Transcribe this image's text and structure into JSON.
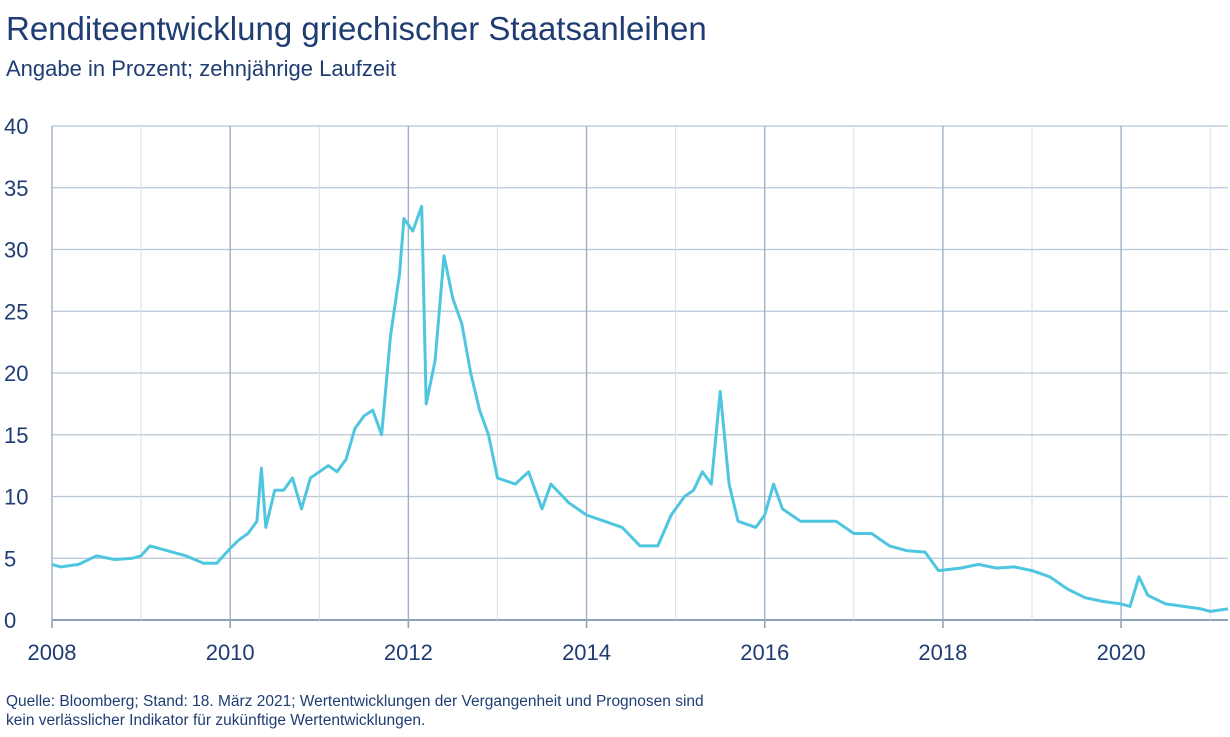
{
  "chart_data": {
    "type": "line",
    "title": "Renditeentwicklung griechischer Staatsanleihen",
    "subtitle": "Angabe in Prozent; zehnjährige Laufzeit",
    "xlabel": "",
    "ylabel": "",
    "xlim": [
      2008,
      2021.2
    ],
    "ylim": [
      0,
      40
    ],
    "x_ticks": [
      2008,
      2010,
      2012,
      2014,
      2016,
      2018,
      2020
    ],
    "y_ticks": [
      0,
      5,
      10,
      15,
      20,
      25,
      30,
      35,
      40
    ],
    "grid": true,
    "legend": "none",
    "series": [
      {
        "color": "#4fc6df",
        "points": [
          [
            2008.0,
            4.5
          ],
          [
            2008.1,
            4.3
          ],
          [
            2008.3,
            4.5
          ],
          [
            2008.5,
            5.2
          ],
          [
            2008.7,
            4.9
          ],
          [
            2008.9,
            5.0
          ],
          [
            2009.0,
            5.2
          ],
          [
            2009.1,
            6.0
          ],
          [
            2009.3,
            5.6
          ],
          [
            2009.5,
            5.2
          ],
          [
            2009.7,
            4.6
          ],
          [
            2009.85,
            4.6
          ],
          [
            2010.0,
            5.8
          ],
          [
            2010.1,
            6.5
          ],
          [
            2010.2,
            7.0
          ],
          [
            2010.3,
            8.0
          ],
          [
            2010.35,
            12.3
          ],
          [
            2010.4,
            7.5
          ],
          [
            2010.5,
            10.5
          ],
          [
            2010.6,
            10.5
          ],
          [
            2010.7,
            11.5
          ],
          [
            2010.8,
            9.0
          ],
          [
            2010.9,
            11.5
          ],
          [
            2011.0,
            12.0
          ],
          [
            2011.1,
            12.5
          ],
          [
            2011.2,
            12.0
          ],
          [
            2011.3,
            13.0
          ],
          [
            2011.4,
            15.5
          ],
          [
            2011.5,
            16.5
          ],
          [
            2011.6,
            17.0
          ],
          [
            2011.7,
            15.0
          ],
          [
            2011.8,
            23.0
          ],
          [
            2011.9,
            28.0
          ],
          [
            2011.95,
            32.5
          ],
          [
            2012.05,
            31.5
          ],
          [
            2012.15,
            33.5
          ],
          [
            2012.2,
            17.5
          ],
          [
            2012.3,
            21.0
          ],
          [
            2012.4,
            29.5
          ],
          [
            2012.5,
            26.0
          ],
          [
            2012.6,
            24.0
          ],
          [
            2012.7,
            20.0
          ],
          [
            2012.8,
            17.0
          ],
          [
            2012.9,
            15.0
          ],
          [
            2013.0,
            11.5
          ],
          [
            2013.2,
            11.0
          ],
          [
            2013.35,
            12.0
          ],
          [
            2013.5,
            9.0
          ],
          [
            2013.6,
            11.0
          ],
          [
            2013.8,
            9.5
          ],
          [
            2014.0,
            8.5
          ],
          [
            2014.2,
            8.0
          ],
          [
            2014.4,
            7.5
          ],
          [
            2014.6,
            6.0
          ],
          [
            2014.8,
            6.0
          ],
          [
            2014.95,
            8.5
          ],
          [
            2015.1,
            10.0
          ],
          [
            2015.2,
            10.5
          ],
          [
            2015.3,
            12.0
          ],
          [
            2015.4,
            11.0
          ],
          [
            2015.5,
            18.5
          ],
          [
            2015.6,
            11.0
          ],
          [
            2015.7,
            8.0
          ],
          [
            2015.9,
            7.5
          ],
          [
            2016.0,
            8.5
          ],
          [
            2016.1,
            11.0
          ],
          [
            2016.2,
            9.0
          ],
          [
            2016.4,
            8.0
          ],
          [
            2016.6,
            8.0
          ],
          [
            2016.8,
            8.0
          ],
          [
            2017.0,
            7.0
          ],
          [
            2017.2,
            7.0
          ],
          [
            2017.4,
            6.0
          ],
          [
            2017.6,
            5.6
          ],
          [
            2017.8,
            5.5
          ],
          [
            2017.95,
            4.0
          ],
          [
            2018.2,
            4.2
          ],
          [
            2018.4,
            4.5
          ],
          [
            2018.6,
            4.2
          ],
          [
            2018.8,
            4.3
          ],
          [
            2019.0,
            4.0
          ],
          [
            2019.2,
            3.5
          ],
          [
            2019.4,
            2.5
          ],
          [
            2019.6,
            1.8
          ],
          [
            2019.8,
            1.5
          ],
          [
            2020.0,
            1.3
          ],
          [
            2020.1,
            1.1
          ],
          [
            2020.2,
            3.5
          ],
          [
            2020.3,
            2.0
          ],
          [
            2020.5,
            1.3
          ],
          [
            2020.7,
            1.1
          ],
          [
            2020.9,
            0.9
          ],
          [
            2021.0,
            0.7
          ],
          [
            2021.2,
            0.9
          ]
        ]
      }
    ],
    "note_lines": [
      "Quelle: Bloomberg; Stand: 18. März 2021; Wertentwicklungen der Vergangenheit und Prognosen sind",
      "kein verlässlicher Indikator für zukünftige Wertentwicklungen."
    ]
  }
}
